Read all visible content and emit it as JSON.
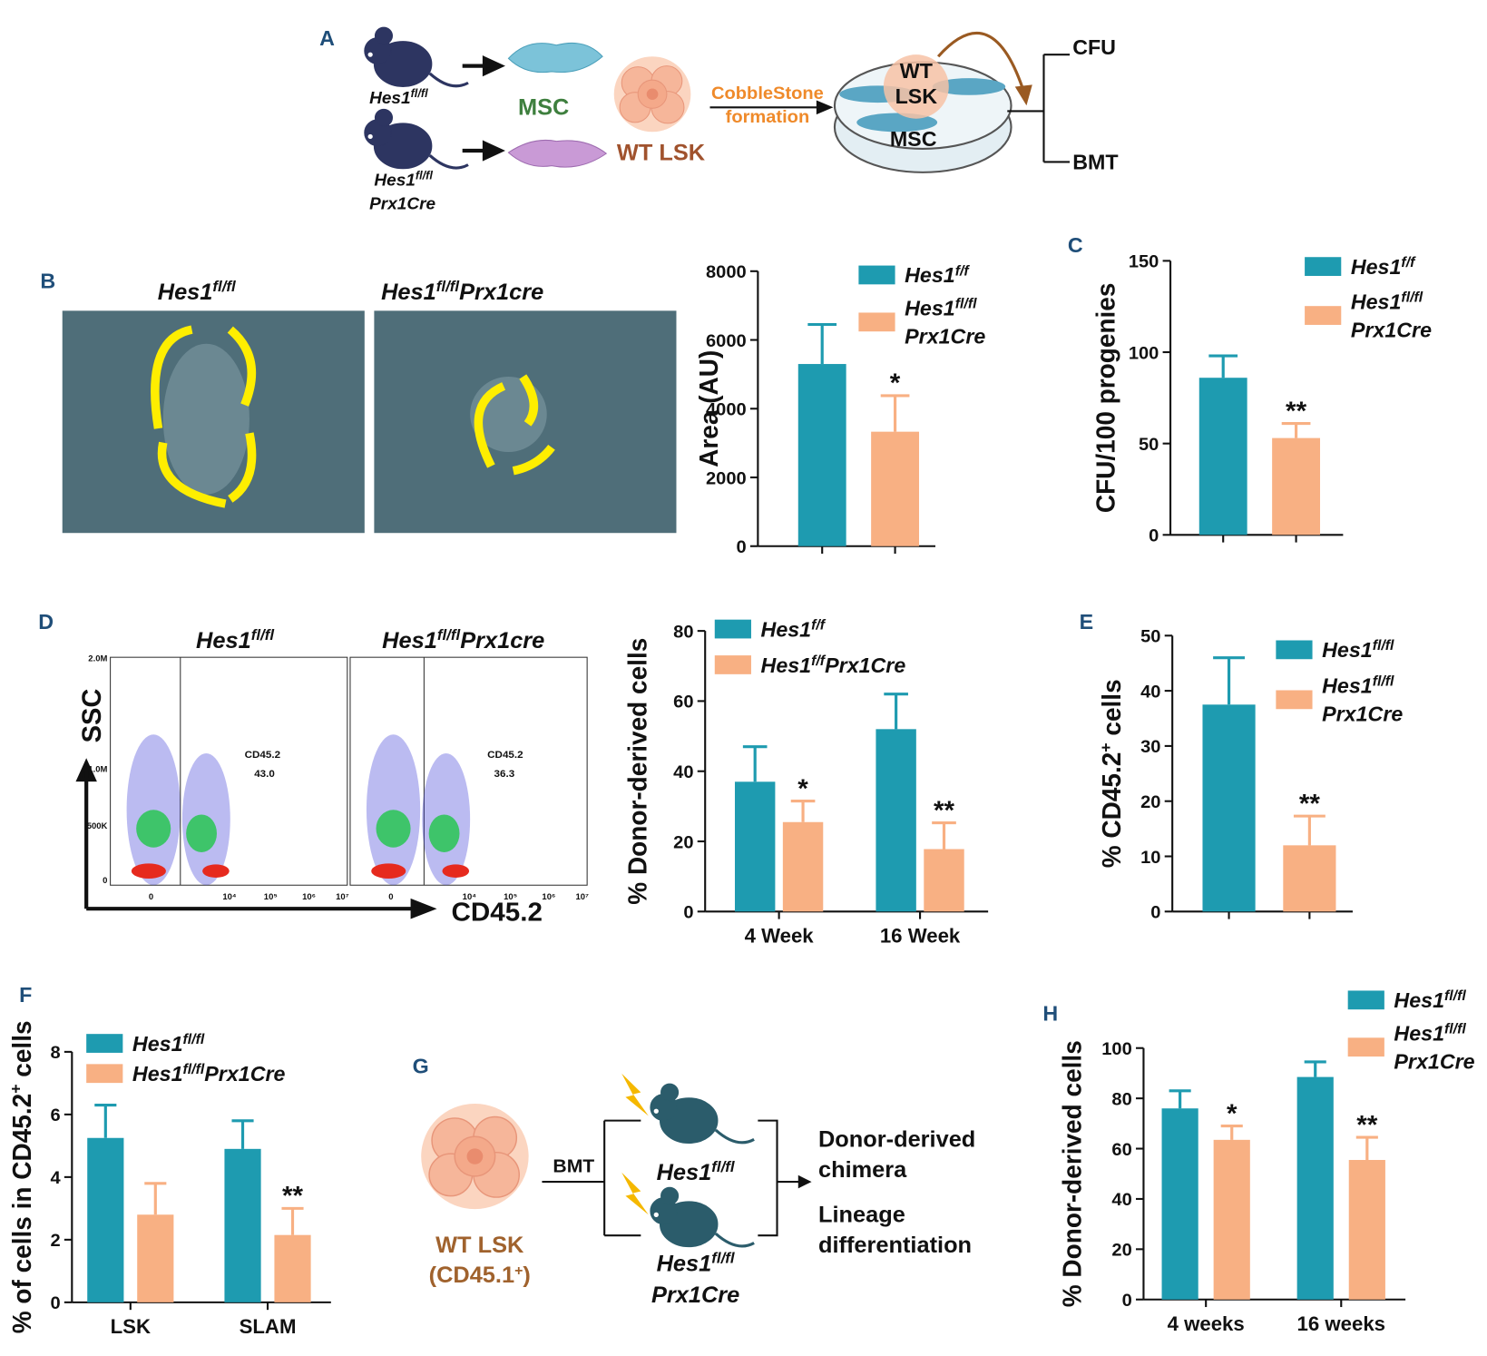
{
  "diagram_a": {
    "panel": "A",
    "mouse1": [
      "Hes1",
      "fl/fl"
    ],
    "mouse2": [
      "Hes1",
      "fl/fl",
      "Prx1Cre"
    ],
    "msc": "MSC",
    "lsk": "WT LSK",
    "process": [
      "CobbleStone",
      "formation"
    ],
    "dish": [
      "WT",
      "LSK",
      "MSC"
    ],
    "outputs": [
      "CFU",
      "BMT"
    ]
  },
  "micrographs_b": {
    "panel": "B",
    "titles": [
      [
        "Hes1",
        "fl/fl"
      ],
      [
        "Hes1",
        "fl/fl",
        "Prx1cre"
      ]
    ]
  },
  "flow_d": {
    "panel": "D",
    "titles": [
      [
        "Hes1",
        "fl/fl"
      ],
      [
        "Hes1",
        "fl/fl",
        "Prx1cre"
      ]
    ],
    "gates": [
      [
        "CD45.2",
        "43.0"
      ],
      [
        "CD45.2",
        "36.3"
      ]
    ],
    "y_axis": "SSC",
    "x_axis": "CD45.2",
    "yticks": [
      "2.0M",
      "1.0M",
      "500K",
      "0"
    ],
    "xticks": [
      "0",
      "10⁴",
      "10⁵",
      "10⁶",
      "10⁷"
    ]
  },
  "diagram_g": {
    "panel": "G",
    "source": [
      "WT LSK"
    ],
    "source_marker": [
      "(CD45.1",
      "+",
      ")"
    ],
    "transfer": "BMT",
    "recipient1": [
      "Hes1",
      "fl/fl"
    ],
    "recipient2": [
      "Hes1",
      "fl/fl",
      "Prx1Cre"
    ],
    "readouts": [
      "Donor-derived",
      "chimera",
      "Lineage",
      "differentiation"
    ]
  },
  "chart_data": [
    {
      "type": "bar",
      "ylabel": [
        "Area (AU)"
      ],
      "categories": [
        null
      ],
      "ylim": [
        0,
        8000
      ],
      "yticks": [
        0,
        2000,
        4000,
        6000,
        8000
      ],
      "legend_wrap": true,
      "series": [
        {
          "name": [
            "Hes1",
            "f/f"
          ],
          "color": "#1e9bb0",
          "values": [
            5300
          ],
          "errors": [
            1150
          ],
          "annotations": [
            null
          ]
        },
        {
          "name": [
            "Hes1",
            "fl/fl",
            "Prx1Cre"
          ],
          "color": "#f8b083",
          "values": [
            3330
          ],
          "errors": [
            1050
          ],
          "annotations": [
            "*"
          ]
        }
      ]
    },
    {
      "type": "bar",
      "panel": "C",
      "ylabel": [
        "CFU/100 progenies"
      ],
      "categories": [
        null
      ],
      "ylim": [
        0,
        150
      ],
      "yticks": [
        0,
        50,
        100,
        150
      ],
      "legend_wrap": true,
      "series": [
        {
          "name": [
            "Hes1",
            "f/f"
          ],
          "color": "#1e9bb0",
          "values": [
            86
          ],
          "errors": [
            12
          ],
          "annotations": [
            null
          ]
        },
        {
          "name": [
            "Hes1",
            "fl/fl",
            "Prx1Cre"
          ],
          "color": "#f8b083",
          "values": [
            53
          ],
          "errors": [
            8
          ],
          "annotations": [
            "**"
          ]
        }
      ]
    },
    {
      "type": "bar",
      "ylabel": [
        "% Donor-derived cells"
      ],
      "categories": [
        "4 Week",
        "16 Week"
      ],
      "ylim": [
        0,
        80
      ],
      "yticks": [
        0,
        20,
        40,
        60,
        80
      ],
      "legend_wrap": false,
      "series": [
        {
          "name": [
            "Hes1",
            "f/f"
          ],
          "color": "#1e9bb0",
          "values": [
            37,
            52
          ],
          "errors": [
            10,
            10
          ],
          "annotations": [
            null,
            null
          ]
        },
        {
          "name": [
            "Hes1",
            "f/f",
            "Prx1Cre"
          ],
          "color": "#f8b083",
          "values": [
            25.5,
            17.8
          ],
          "errors": [
            6,
            7.5
          ],
          "annotations": [
            "*",
            "**"
          ]
        }
      ]
    },
    {
      "type": "bar",
      "panel": "E",
      "ylabel": [
        "% CD45.2",
        "+",
        " cells"
      ],
      "categories": [
        null
      ],
      "ylim": [
        0,
        50
      ],
      "yticks": [
        0,
        10,
        20,
        30,
        40,
        50
      ],
      "legend_wrap": true,
      "series": [
        {
          "name": [
            "Hes1",
            "fl/fl"
          ],
          "color": "#1e9bb0",
          "values": [
            37.5
          ],
          "errors": [
            8.5
          ],
          "annotations": [
            null
          ]
        },
        {
          "name": [
            "Hes1",
            "fl/fl",
            "Prx1Cre"
          ],
          "color": "#f8b083",
          "values": [
            12
          ],
          "errors": [
            5.3
          ],
          "annotations": [
            "**"
          ]
        }
      ]
    },
    {
      "type": "bar",
      "panel": "F",
      "ylabel": [
        "% of cells in CD45.2",
        "+",
        " cells"
      ],
      "categories": [
        "LSK",
        "SLAM"
      ],
      "ylim": [
        0,
        8
      ],
      "yticks": [
        0,
        2,
        4,
        6,
        8
      ],
      "legend_wrap": false,
      "series": [
        {
          "name": [
            "Hes1",
            "fl/fl"
          ],
          "color": "#1e9bb0",
          "values": [
            5.25,
            4.9
          ],
          "errors": [
            1.05,
            0.9
          ],
          "annotations": [
            null,
            null
          ]
        },
        {
          "name": [
            "Hes1",
            "fl/fl",
            "Prx1Cre"
          ],
          "color": "#f8b083",
          "values": [
            2.8,
            2.15
          ],
          "errors": [
            1.0,
            0.85
          ],
          "annotations": [
            null,
            "**"
          ]
        }
      ]
    },
    {
      "type": "bar",
      "panel": "H",
      "ylabel": [
        "% Donor-derived cells"
      ],
      "categories": [
        "4 weeks",
        "16 weeks"
      ],
      "ylim": [
        0,
        100
      ],
      "yticks": [
        0,
        20,
        40,
        60,
        80,
        100
      ],
      "legend_wrap": true,
      "series": [
        {
          "name": [
            "Hes1",
            "fl/fl"
          ],
          "color": "#1e9bb0",
          "values": [
            76,
            88.5
          ],
          "errors": [
            7,
            6
          ],
          "annotations": [
            null,
            null
          ]
        },
        {
          "name": [
            "Hes1",
            "fl/fl",
            "Prx1Cre"
          ],
          "color": "#f8b083",
          "values": [
            63.5,
            55.5
          ],
          "errors": [
            5.5,
            9
          ],
          "annotations": [
            "*",
            "**"
          ]
        }
      ]
    }
  ]
}
